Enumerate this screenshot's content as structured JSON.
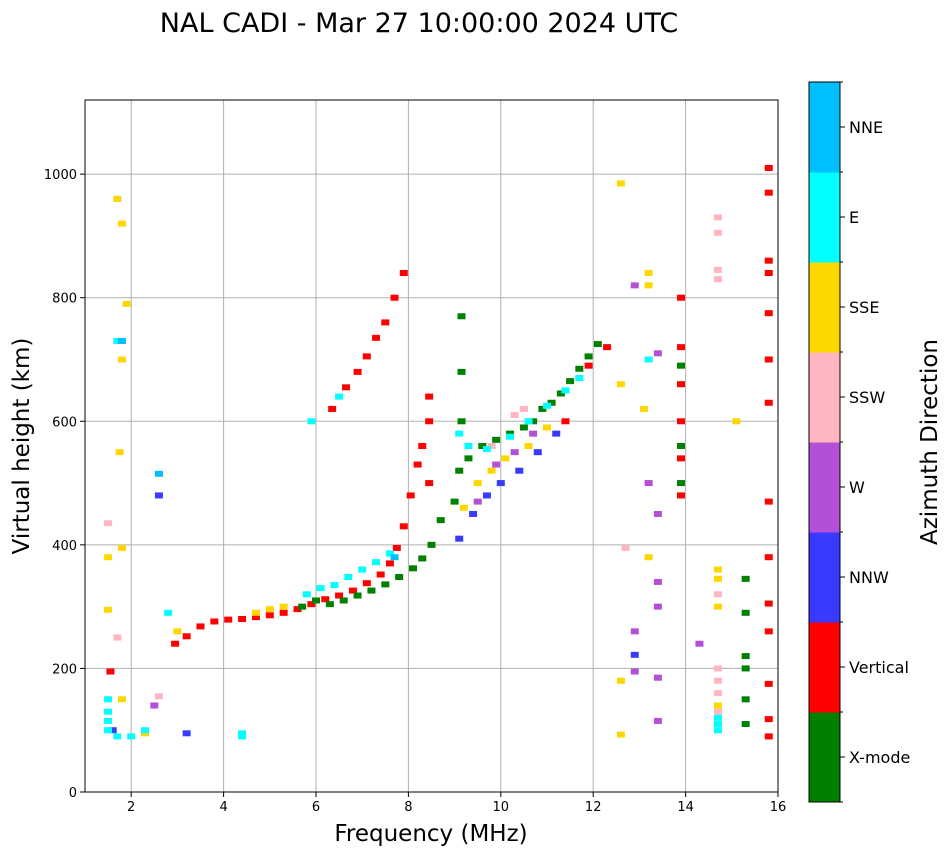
{
  "chart_data": {
    "type": "scatter",
    "title": "NAL CADI - Mar 27 10:00:00 2024 UTC",
    "xlabel": "Frequency (MHz)",
    "ylabel": "Virtual height (km)",
    "xlim": [
      1,
      16
    ],
    "ylim": [
      0,
      1120
    ],
    "xticks": [
      2,
      4,
      6,
      8,
      10,
      12,
      14,
      16
    ],
    "yticks": [
      0,
      200,
      400,
      600,
      800,
      1000
    ],
    "grid": true,
    "colorbar": {
      "label": "Azimuth Direction",
      "categories": [
        {
          "name": "X-mode",
          "color": "#008000"
        },
        {
          "name": "Vertical",
          "color": "#ff0000"
        },
        {
          "name": "NNW",
          "color": "#3a3aff"
        },
        {
          "name": "W",
          "color": "#b44fd8"
        },
        {
          "name": "SSW",
          "color": "#ffb6c1"
        },
        {
          "name": "SSE",
          "color": "#ffd700"
        },
        {
          "name": "E",
          "color": "#00ffff"
        },
        {
          "name": "NNE",
          "color": "#00bfff"
        }
      ]
    },
    "series": [
      {
        "name": "Vertical",
        "points": [
          [
            2.95,
            240
          ],
          [
            3.2,
            252
          ],
          [
            3.5,
            268
          ],
          [
            3.8,
            276
          ],
          [
            4.1,
            279
          ],
          [
            4.4,
            280
          ],
          [
            4.7,
            283
          ],
          [
            5.0,
            286
          ],
          [
            5.3,
            290
          ],
          [
            5.6,
            296
          ],
          [
            5.9,
            304
          ],
          [
            6.2,
            312
          ],
          [
            6.5,
            318
          ],
          [
            6.8,
            326
          ],
          [
            7.1,
            338
          ],
          [
            7.4,
            352
          ],
          [
            7.6,
            370
          ],
          [
            7.75,
            395
          ],
          [
            7.9,
            430
          ],
          [
            8.05,
            480
          ],
          [
            8.2,
            530
          ],
          [
            8.3,
            560
          ],
          [
            6.35,
            620
          ],
          [
            6.65,
            655
          ],
          [
            6.9,
            680
          ],
          [
            7.1,
            705
          ],
          [
            7.3,
            735
          ],
          [
            7.5,
            760
          ],
          [
            7.7,
            800
          ],
          [
            7.9,
            840
          ],
          [
            8.45,
            600
          ],
          [
            8.45,
            640
          ],
          [
            8.45,
            500
          ],
          [
            1.55,
            195
          ],
          [
            13.9,
            480
          ],
          [
            13.9,
            540
          ],
          [
            13.9,
            600
          ],
          [
            13.9,
            660
          ],
          [
            13.9,
            720
          ],
          [
            13.9,
            800
          ],
          [
            15.8,
            1010
          ],
          [
            15.8,
            970
          ],
          [
            15.8,
            860
          ],
          [
            15.8,
            840
          ],
          [
            15.8,
            775
          ],
          [
            15.8,
            700
          ],
          [
            15.8,
            630
          ],
          [
            15.8,
            470
          ],
          [
            15.8,
            380
          ],
          [
            15.8,
            305
          ],
          [
            15.8,
            260
          ],
          [
            15.8,
            175
          ],
          [
            15.8,
            118
          ],
          [
            15.8,
            90
          ],
          [
            11.4,
            600
          ],
          [
            11.9,
            690
          ],
          [
            12.3,
            720
          ]
        ]
      },
      {
        "name": "X-mode",
        "points": [
          [
            5.7,
            300
          ],
          [
            6.0,
            310
          ],
          [
            6.3,
            304
          ],
          [
            6.6,
            310
          ],
          [
            6.9,
            318
          ],
          [
            7.2,
            326
          ],
          [
            7.5,
            336
          ],
          [
            7.8,
            348
          ],
          [
            8.1,
            362
          ],
          [
            8.3,
            378
          ],
          [
            8.5,
            400
          ],
          [
            8.7,
            440
          ],
          [
            9.0,
            470
          ],
          [
            9.1,
            520
          ],
          [
            9.3,
            540
          ],
          [
            9.6,
            560
          ],
          [
            9.9,
            570
          ],
          [
            10.2,
            580
          ],
          [
            10.5,
            590
          ],
          [
            10.7,
            600
          ],
          [
            10.9,
            620
          ],
          [
            11.1,
            630
          ],
          [
            11.3,
            645
          ],
          [
            11.5,
            665
          ],
          [
            11.7,
            685
          ],
          [
            11.9,
            705
          ],
          [
            12.1,
            725
          ],
          [
            9.15,
            680
          ],
          [
            9.15,
            770
          ],
          [
            9.15,
            600
          ],
          [
            15.3,
            220
          ],
          [
            15.3,
            200
          ],
          [
            15.3,
            150
          ],
          [
            15.3,
            110
          ],
          [
            15.3,
            345
          ],
          [
            15.3,
            290
          ],
          [
            13.9,
            690
          ],
          [
            13.9,
            560
          ],
          [
            13.9,
            500
          ]
        ]
      },
      {
        "name": "NNW",
        "points": [
          [
            9.1,
            410
          ],
          [
            9.4,
            450
          ],
          [
            9.7,
            480
          ],
          [
            10.0,
            500
          ],
          [
            10.4,
            520
          ],
          [
            10.8,
            550
          ],
          [
            11.2,
            580
          ],
          [
            3.2,
            95
          ],
          [
            1.6,
            100
          ],
          [
            12.9,
            222
          ],
          [
            2.6,
            480
          ]
        ]
      },
      {
        "name": "W",
        "points": [
          [
            9.5,
            470
          ],
          [
            9.9,
            530
          ],
          [
            10.3,
            550
          ],
          [
            10.7,
            580
          ],
          [
            12.9,
            820
          ],
          [
            13.4,
            710
          ],
          [
            13.4,
            450
          ],
          [
            13.4,
            340
          ],
          [
            13.4,
            300
          ],
          [
            13.4,
            185
          ],
          [
            13.4,
            115
          ],
          [
            13.2,
            500
          ],
          [
            14.3,
            240
          ],
          [
            12.9,
            260
          ],
          [
            12.9,
            195
          ],
          [
            2.5,
            140
          ]
        ]
      },
      {
        "name": "SSW",
        "points": [
          [
            14.7,
            200
          ],
          [
            14.7,
            180
          ],
          [
            14.7,
            160
          ],
          [
            14.7,
            130
          ],
          [
            14.7,
            320
          ],
          [
            14.7,
            930
          ],
          [
            14.7,
            905
          ],
          [
            14.7,
            845
          ],
          [
            14.7,
            830
          ],
          [
            9.8,
            560
          ],
          [
            10.3,
            610
          ],
          [
            10.5,
            620
          ],
          [
            1.7,
            250
          ],
          [
            1.5,
            435
          ],
          [
            2.6,
            155
          ],
          [
            12.7,
            395
          ]
        ]
      },
      {
        "name": "SSE",
        "points": [
          [
            9.2,
            460
          ],
          [
            9.5,
            500
          ],
          [
            9.8,
            520
          ],
          [
            10.1,
            540
          ],
          [
            10.6,
            560
          ],
          [
            11.0,
            590
          ],
          [
            14.7,
            360
          ],
          [
            14.7,
            345
          ],
          [
            14.7,
            300
          ],
          [
            14.7,
            140
          ],
          [
            15.1,
            600
          ],
          [
            13.2,
            380
          ],
          [
            13.2,
            820
          ],
          [
            13.2,
            840
          ],
          [
            13.1,
            620
          ],
          [
            12.6,
            985
          ],
          [
            12.6,
            660
          ],
          [
            12.6,
            180
          ],
          [
            12.6,
            93
          ],
          [
            1.7,
            960
          ],
          [
            1.8,
            920
          ],
          [
            1.8,
            700
          ],
          [
            1.5,
            380
          ],
          [
            1.5,
            295
          ],
          [
            1.8,
            150
          ],
          [
            2.3,
            95
          ],
          [
            1.75,
            550
          ],
          [
            1.8,
            395
          ],
          [
            1.9,
            790
          ],
          [
            3.0,
            260
          ],
          [
            4.7,
            290
          ],
          [
            5.0,
            296
          ],
          [
            5.3,
            300
          ]
        ]
      },
      {
        "name": "E",
        "points": [
          [
            5.8,
            320
          ],
          [
            6.1,
            330
          ],
          [
            6.4,
            335
          ],
          [
            6.7,
            348
          ],
          [
            7.0,
            360
          ],
          [
            7.3,
            372
          ],
          [
            7.6,
            386
          ],
          [
            9.1,
            580
          ],
          [
            9.3,
            560
          ],
          [
            9.7,
            555
          ],
          [
            10.2,
            575
          ],
          [
            10.6,
            600
          ],
          [
            11.0,
            625
          ],
          [
            11.4,
            650
          ],
          [
            11.7,
            670
          ],
          [
            13.2,
            700
          ],
          [
            1.5,
            150
          ],
          [
            1.5,
            130
          ],
          [
            1.5,
            115
          ],
          [
            1.5,
            100
          ],
          [
            1.7,
            90
          ],
          [
            2.0,
            90
          ],
          [
            2.3,
            100
          ],
          [
            4.4,
            95
          ],
          [
            4.4,
            90
          ],
          [
            2.8,
            290
          ],
          [
            14.7,
            120
          ],
          [
            14.7,
            110
          ],
          [
            14.7,
            100
          ],
          [
            1.7,
            730
          ],
          [
            6.5,
            640
          ],
          [
            5.9,
            600
          ]
        ]
      },
      {
        "name": "NNE",
        "points": [
          [
            1.8,
            730
          ],
          [
            2.6,
            515
          ],
          [
            7.7,
            380
          ]
        ]
      }
    ]
  }
}
